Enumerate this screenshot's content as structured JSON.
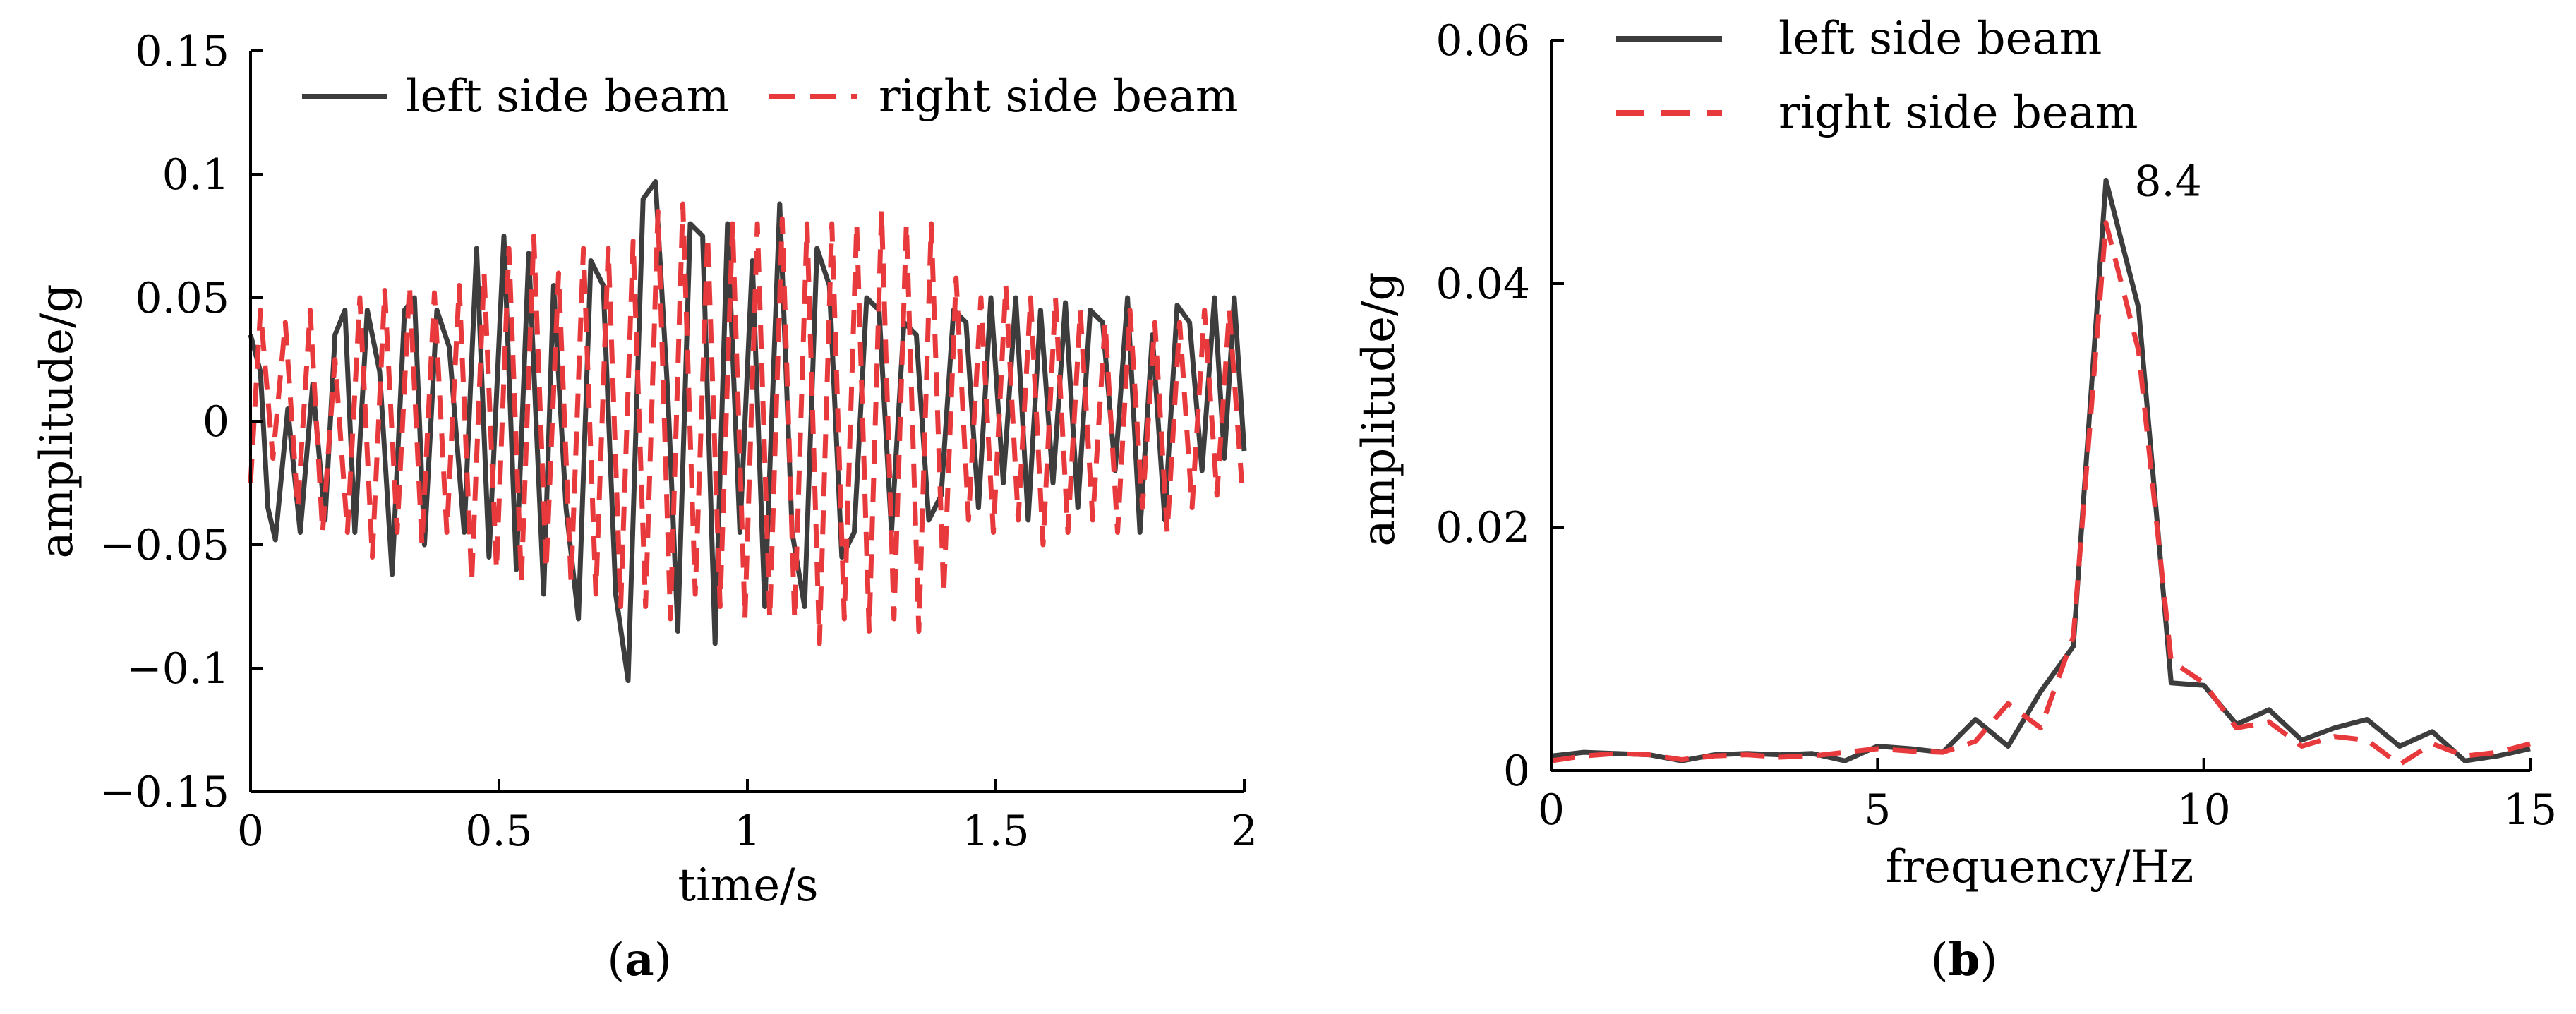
{
  "colors": {
    "left": "#3d3d3d",
    "right": "#e8393c",
    "axis": "#000000"
  },
  "chart_data": [
    {
      "type": "line",
      "id": "a",
      "caption": {
        "open": "(",
        "letter": "a",
        "close": ")"
      },
      "xlabel": "time/s",
      "ylabel": "amplitude/g",
      "xlim": [
        0,
        2
      ],
      "ylim": [
        -0.15,
        0.15
      ],
      "xticks": [
        0,
        0.5,
        1,
        1.5,
        2
      ],
      "xtick_labels": [
        "0",
        "0.5",
        "1",
        "1.5",
        "2"
      ],
      "yticks": [
        -0.15,
        -0.1,
        -0.05,
        0,
        0.05,
        0.1,
        0.15
      ],
      "ytick_labels": [
        "−0.15",
        "−0.1",
        "−0.05",
        "0",
        "0.05",
        "0.1",
        "0.15"
      ],
      "legend": {
        "placement": "top",
        "entries": [
          "left side beam",
          "right side beam"
        ]
      },
      "series": [
        {
          "name": "left side beam",
          "color": "#3d3d3d",
          "dash": false,
          "x": [
            0,
            0.02,
            0.035,
            0.05,
            0.075,
            0.1,
            0.125,
            0.15,
            0.17,
            0.19,
            0.21,
            0.235,
            0.26,
            0.285,
            0.31,
            0.33,
            0.35,
            0.375,
            0.4,
            0.43,
            0.455,
            0.48,
            0.51,
            0.535,
            0.56,
            0.59,
            0.61,
            0.635,
            0.66,
            0.685,
            0.71,
            0.735,
            0.76,
            0.79,
            0.815,
            0.84,
            0.86,
            0.885,
            0.91,
            0.935,
            0.96,
            0.985,
            1.01,
            1.035,
            1.065,
            1.09,
            1.115,
            1.14,
            1.165,
            1.19,
            1.215,
            1.24,
            1.265,
            1.29,
            1.315,
            1.34,
            1.365,
            1.39,
            1.415,
            1.44,
            1.465,
            1.49,
            1.515,
            1.54,
            1.565,
            1.59,
            1.615,
            1.64,
            1.665,
            1.69,
            1.715,
            1.74,
            1.765,
            1.79,
            1.815,
            1.84,
            1.865,
            1.89,
            1.915,
            1.94,
            1.96,
            1.98,
            2.0
          ],
          "y": [
            0.035,
            0.02,
            -0.035,
            -0.048,
            0.005,
            -0.045,
            0.015,
            -0.04,
            0.035,
            0.045,
            -0.045,
            0.045,
            0.02,
            -0.062,
            0.045,
            0.05,
            -0.05,
            0.045,
            0.03,
            -0.045,
            0.07,
            -0.055,
            0.075,
            -0.06,
            0.068,
            -0.07,
            0.055,
            -0.035,
            -0.08,
            0.065,
            0.055,
            -0.07,
            -0.105,
            0.09,
            0.097,
            0.01,
            -0.085,
            0.08,
            0.075,
            -0.09,
            0.08,
            -0.045,
            0.065,
            -0.075,
            0.088,
            -0.045,
            -0.075,
            0.07,
            0.055,
            -0.055,
            -0.045,
            0.05,
            0.045,
            -0.045,
            0.04,
            0.035,
            -0.04,
            -0.03,
            0.045,
            0.04,
            -0.035,
            0.05,
            -0.025,
            0.05,
            -0.04,
            0.045,
            -0.025,
            0.048,
            -0.035,
            0.045,
            0.04,
            -0.02,
            0.05,
            -0.045,
            0.035,
            -0.04,
            0.047,
            0.04,
            -0.02,
            0.05,
            -0.015,
            0.05,
            -0.012
          ]
        },
        {
          "name": "right side beam",
          "color": "#e8393c",
          "dash": true,
          "x": [
            0,
            0.02,
            0.045,
            0.07,
            0.095,
            0.12,
            0.145,
            0.17,
            0.195,
            0.22,
            0.245,
            0.27,
            0.295,
            0.32,
            0.345,
            0.37,
            0.395,
            0.42,
            0.445,
            0.47,
            0.495,
            0.52,
            0.545,
            0.57,
            0.595,
            0.62,
            0.645,
            0.67,
            0.695,
            0.72,
            0.745,
            0.77,
            0.795,
            0.82,
            0.845,
            0.87,
            0.895,
            0.92,
            0.945,
            0.97,
            0.995,
            1.02,
            1.045,
            1.07,
            1.095,
            1.12,
            1.145,
            1.17,
            1.195,
            1.22,
            1.245,
            1.27,
            1.295,
            1.32,
            1.345,
            1.37,
            1.395,
            1.42,
            1.445,
            1.47,
            1.495,
            1.52,
            1.545,
            1.57,
            1.595,
            1.62,
            1.645,
            1.67,
            1.695,
            1.72,
            1.745,
            1.77,
            1.795,
            1.82,
            1.845,
            1.87,
            1.895,
            1.92,
            1.945,
            1.97,
            1.995
          ],
          "y": [
            -0.025,
            0.045,
            -0.015,
            0.04,
            -0.035,
            0.045,
            -0.045,
            0.025,
            -0.045,
            0.05,
            -0.055,
            0.053,
            -0.045,
            0.055,
            -0.05,
            0.052,
            -0.045,
            0.055,
            -0.065,
            0.06,
            -0.06,
            0.07,
            -0.065,
            0.075,
            -0.06,
            0.06,
            -0.065,
            0.07,
            -0.07,
            0.07,
            -0.075,
            0.073,
            -0.075,
            0.085,
            -0.08,
            0.088,
            -0.07,
            0.075,
            -0.075,
            0.08,
            -0.08,
            0.08,
            -0.08,
            0.082,
            -0.08,
            0.08,
            -0.09,
            0.08,
            -0.08,
            0.08,
            -0.085,
            0.085,
            -0.08,
            0.08,
            -0.085,
            0.08,
            -0.07,
            0.058,
            -0.04,
            0.05,
            -0.045,
            0.055,
            -0.04,
            0.05,
            -0.05,
            0.05,
            -0.045,
            0.045,
            -0.04,
            0.04,
            -0.045,
            0.045,
            -0.035,
            0.04,
            -0.045,
            0.04,
            -0.035,
            0.045,
            -0.03,
            0.045,
            -0.025
          ]
        }
      ]
    },
    {
      "type": "line",
      "id": "b",
      "caption": {
        "open": "(",
        "letter": "b",
        "close": ")"
      },
      "xlabel": "frequency/Hz",
      "ylabel": "amplitude/g",
      "xlim": [
        0,
        15
      ],
      "ylim": [
        0,
        0.06
      ],
      "xticks": [
        0,
        5,
        10,
        15
      ],
      "xtick_labels": [
        "0",
        "5",
        "10",
        "15"
      ],
      "yticks": [
        0,
        0.02,
        0.04,
        0.06
      ],
      "ytick_labels": [
        "0",
        "0.02",
        "0.04",
        "0.06"
      ],
      "legend": {
        "placement": "top-left",
        "entries": [
          "left side beam",
          "right side beam"
        ]
      },
      "annotations": [
        {
          "text": "8.4",
          "x": 8.45,
          "y": 0.0485
        }
      ],
      "series": [
        {
          "name": "left side beam",
          "color": "#3d3d3d",
          "dash": false,
          "x": [
            0,
            0.5,
            1.5,
            2.0,
            2.5,
            3.0,
            3.5,
            4.0,
            4.5,
            5.0,
            5.5,
            6.0,
            6.5,
            7.0,
            7.5,
            8.0,
            8.5,
            9.0,
            9.5,
            10.0,
            10.5,
            11.0,
            11.5,
            12.0,
            12.5,
            13.0,
            13.5,
            14.0,
            14.5,
            15.0
          ],
          "y": [
            0.0012,
            0.0015,
            0.0013,
            0.0008,
            0.0013,
            0.0014,
            0.0013,
            0.0014,
            0.0008,
            0.002,
            0.0018,
            0.0015,
            0.0042,
            0.002,
            0.0065,
            0.0102,
            0.0485,
            0.038,
            0.0072,
            0.007,
            0.0038,
            0.005,
            0.0025,
            0.0035,
            0.0042,
            0.002,
            0.0032,
            0.0008,
            0.0012,
            0.0018
          ]
        },
        {
          "name": "right side beam",
          "color": "#e8393c",
          "dash": true,
          "x": [
            0,
            0.5,
            1.0,
            1.5,
            2.0,
            2.5,
            3.0,
            3.5,
            4.0,
            4.5,
            5.0,
            5.5,
            6.0,
            6.5,
            7.0,
            7.5,
            8.0,
            8.5,
            9.0,
            9.5,
            10.0,
            10.5,
            11.0,
            11.5,
            12.0,
            12.5,
            13.0,
            13.5,
            14.0,
            14.5,
            15.0
          ],
          "y": [
            0.0008,
            0.0012,
            0.0014,
            0.0013,
            0.0009,
            0.0012,
            0.0013,
            0.0011,
            0.0012,
            0.0015,
            0.0018,
            0.0016,
            0.0015,
            0.0024,
            0.0055,
            0.0035,
            0.011,
            0.045,
            0.0345,
            0.009,
            0.0072,
            0.0035,
            0.004,
            0.002,
            0.0028,
            0.0025,
            0.0005,
            0.0022,
            0.0012,
            0.0015,
            0.0022
          ]
        }
      ]
    }
  ]
}
